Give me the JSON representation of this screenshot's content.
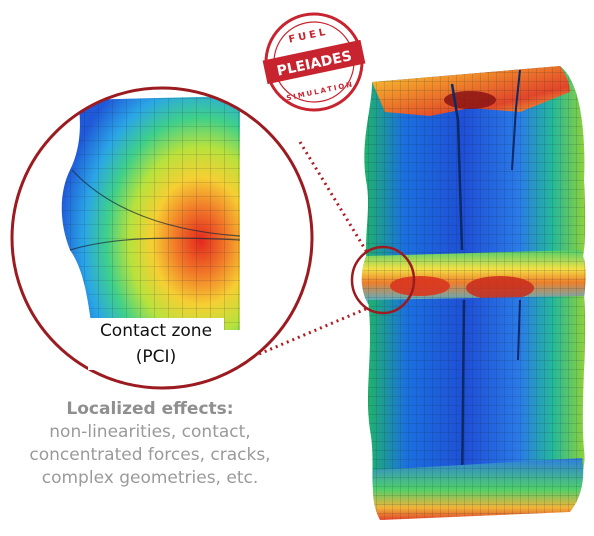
{
  "logo": {
    "top_text": "FUEL",
    "name": "PLEIADES",
    "bottom_text": "SIMULATION",
    "color": "#c8242f"
  },
  "zoom": {
    "label_line1": "Contact zone",
    "label_line2": "(PCI)",
    "circle_color": "#9b1b20"
  },
  "caption": {
    "heading": "Localized effects:",
    "line1": "non-linearities, contact,",
    "line2": "concentrated forces, cracks,",
    "line3": "complex geometries, etc."
  }
}
